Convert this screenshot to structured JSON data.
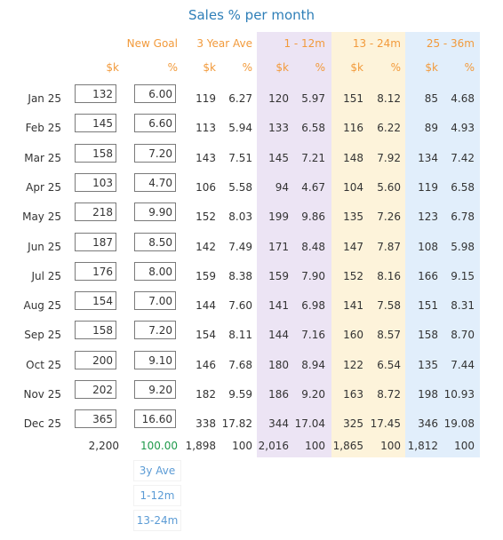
{
  "title": "Sales % per month",
  "headers": {
    "new_goal": "New Goal",
    "three_year_ave": "3 Year Ave",
    "p1": "1 - 12m",
    "p2": "13 - 24m",
    "p3": "25 - 36m",
    "k": "$k",
    "pct": "%"
  },
  "rows": [
    {
      "month": "Jan 25",
      "goal_k": "132",
      "goal_pct": "6.00",
      "ave_k": "119",
      "ave_pct": "6.27",
      "p1_k": "120",
      "p1_pct": "5.97",
      "p2_k": "151",
      "p2_pct": "8.12",
      "p3_k": "85",
      "p3_pct": "4.68"
    },
    {
      "month": "Feb 25",
      "goal_k": "145",
      "goal_pct": "6.60",
      "ave_k": "113",
      "ave_pct": "5.94",
      "p1_k": "133",
      "p1_pct": "6.58",
      "p2_k": "116",
      "p2_pct": "6.22",
      "p3_k": "89",
      "p3_pct": "4.93"
    },
    {
      "month": "Mar 25",
      "goal_k": "158",
      "goal_pct": "7.20",
      "ave_k": "143",
      "ave_pct": "7.51",
      "p1_k": "145",
      "p1_pct": "7.21",
      "p2_k": "148",
      "p2_pct": "7.92",
      "p3_k": "134",
      "p3_pct": "7.42"
    },
    {
      "month": "Apr 25",
      "goal_k": "103",
      "goal_pct": "4.70",
      "ave_k": "106",
      "ave_pct": "5.58",
      "p1_k": "94",
      "p1_pct": "4.67",
      "p2_k": "104",
      "p2_pct": "5.60",
      "p3_k": "119",
      "p3_pct": "6.58"
    },
    {
      "month": "May 25",
      "goal_k": "218",
      "goal_pct": "9.90",
      "ave_k": "152",
      "ave_pct": "8.03",
      "p1_k": "199",
      "p1_pct": "9.86",
      "p2_k": "135",
      "p2_pct": "7.26",
      "p3_k": "123",
      "p3_pct": "6.78"
    },
    {
      "month": "Jun 25",
      "goal_k": "187",
      "goal_pct": "8.50",
      "ave_k": "142",
      "ave_pct": "7.49",
      "p1_k": "171",
      "p1_pct": "8.48",
      "p2_k": "147",
      "p2_pct": "7.87",
      "p3_k": "108",
      "p3_pct": "5.98"
    },
    {
      "month": "Jul 25",
      "goal_k": "176",
      "goal_pct": "8.00",
      "ave_k": "159",
      "ave_pct": "8.38",
      "p1_k": "159",
      "p1_pct": "7.90",
      "p2_k": "152",
      "p2_pct": "8.16",
      "p3_k": "166",
      "p3_pct": "9.15"
    },
    {
      "month": "Aug 25",
      "goal_k": "154",
      "goal_pct": "7.00",
      "ave_k": "144",
      "ave_pct": "7.60",
      "p1_k": "141",
      "p1_pct": "6.98",
      "p2_k": "141",
      "p2_pct": "7.58",
      "p3_k": "151",
      "p3_pct": "8.31"
    },
    {
      "month": "Sep 25",
      "goal_k": "158",
      "goal_pct": "7.20",
      "ave_k": "154",
      "ave_pct": "8.11",
      "p1_k": "144",
      "p1_pct": "7.16",
      "p2_k": "160",
      "p2_pct": "8.57",
      "p3_k": "158",
      "p3_pct": "8.70"
    },
    {
      "month": "Oct 25",
      "goal_k": "200",
      "goal_pct": "9.10",
      "ave_k": "146",
      "ave_pct": "7.68",
      "p1_k": "180",
      "p1_pct": "8.94",
      "p2_k": "122",
      "p2_pct": "6.54",
      "p3_k": "135",
      "p3_pct": "7.44"
    },
    {
      "month": "Nov 25",
      "goal_k": "202",
      "goal_pct": "9.20",
      "ave_k": "182",
      "ave_pct": "9.59",
      "p1_k": "186",
      "p1_pct": "9.20",
      "p2_k": "163",
      "p2_pct": "8.72",
      "p3_k": "198",
      "p3_pct": "10.93"
    },
    {
      "month": "Dec 25",
      "goal_k": "365",
      "goal_pct": "16.60",
      "ave_k": "338",
      "ave_pct": "17.82",
      "p1_k": "344",
      "p1_pct": "17.04",
      "p2_k": "325",
      "p2_pct": "17.45",
      "p3_k": "346",
      "p3_pct": "19.08"
    }
  ],
  "totals": {
    "goal_k": "2,200",
    "goal_pct": "100.00",
    "ave_k": "1,898",
    "ave_pct": "100",
    "p1_k": "2,016",
    "p1_pct": "100",
    "p2_k": "1,865",
    "p2_pct": "100",
    "p3_k": "1,812",
    "p3_pct": "100"
  },
  "buttons": [
    "3y Ave",
    "1-12m",
    "13-24m"
  ],
  "colors": {
    "title": "#2f7fb8",
    "header": "#f29a3b",
    "total_pct": "#1f9a4b",
    "button": "#5b9bd5",
    "band1": "#ece4f4",
    "band2": "#fdf3da",
    "band3": "#e1eefb"
  }
}
